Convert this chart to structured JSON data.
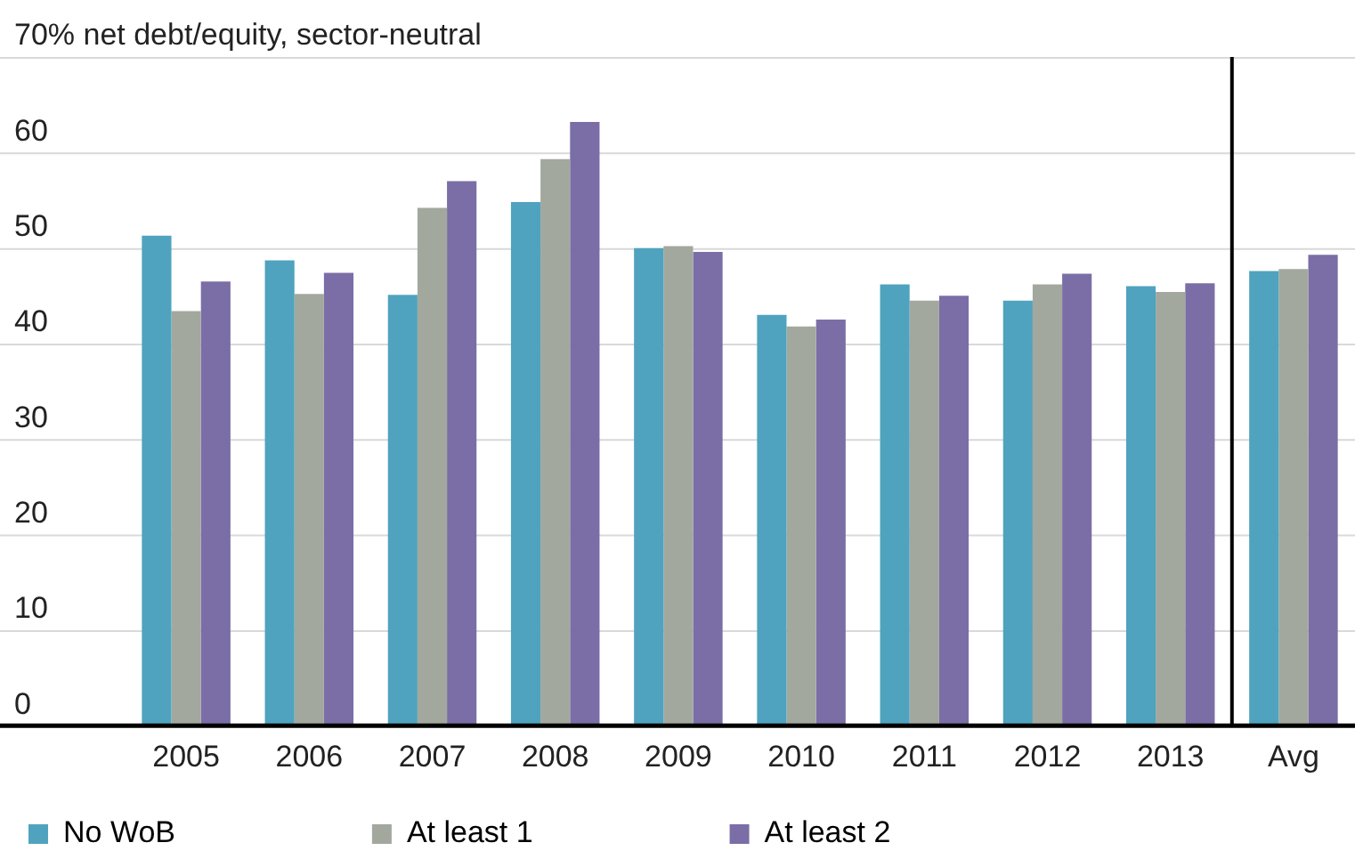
{
  "chart_data": {
    "type": "bar",
    "ylabel": "% net debt/equity, sector-neutral",
    "categories": [
      "2005",
      "2006",
      "2007",
      "2008",
      "2009",
      "2010",
      "2011",
      "2012",
      "2013",
      "Avg"
    ],
    "series": [
      {
        "name": "No WoB",
        "color": "#4fa3be",
        "values": [
          51.3,
          48.7,
          45.1,
          54.8,
          50,
          43,
          46.2,
          44.5,
          46,
          47.6
        ]
      },
      {
        "name": "At least 1",
        "color": "#a3a89e",
        "values": [
          43.4,
          45.2,
          54.2,
          59.3,
          50.2,
          41.8,
          44.5,
          46.2,
          45.4,
          47.8
        ]
      },
      {
        "name": "At least 2",
        "color": "#7b6ea6",
        "values": [
          46.5,
          47.4,
          57,
          63.2,
          49.6,
          42.5,
          45,
          47.3,
          46.3,
          49.3
        ]
      }
    ],
    "ref_lines": [
      {
        "axis": "x",
        "value": "Avg",
        "color": "#000000"
      }
    ],
    "ylim": [
      0,
      70
    ],
    "yticks": [
      0,
      10,
      20,
      30,
      40,
      50,
      60,
      70
    ],
    "grid": "y",
    "legend": "bottom left"
  }
}
